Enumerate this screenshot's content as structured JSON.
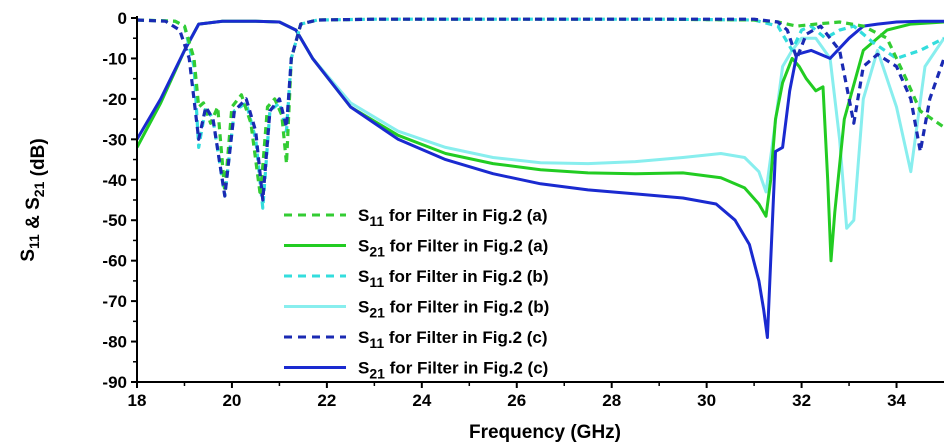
{
  "chart_data": {
    "type": "line",
    "xlabel": "Frequency (GHz)",
    "ylabel": "S11 & S21 (dB)",
    "xlim": [
      18,
      35
    ],
    "ylim": [
      -90,
      0
    ],
    "xticks": [
      18,
      20,
      22,
      24,
      26,
      28,
      30,
      32,
      34
    ],
    "yticks": [
      0,
      -10,
      -20,
      -30,
      -40,
      -50,
      -60,
      -70,
      -80,
      -90
    ],
    "grid": false,
    "legend_position": "bottom-center",
    "legend_suffix": "for Filter in Fig.2",
    "series": [
      {
        "name": "S11 for Filter in Fig.2 (a)",
        "param": "S",
        "param_sub": "11",
        "tag": "(a)",
        "color": "#33cc33",
        "dash": "dashed",
        "x": [
          18,
          18.8,
          19.0,
          19.2,
          19.3,
          19.4,
          19.55,
          19.7,
          19.85,
          20.0,
          20.2,
          20.4,
          20.6,
          20.75,
          20.9,
          21.05,
          21.15,
          21.25,
          21.45,
          21.8,
          23,
          26,
          29,
          31,
          31.5,
          31.9,
          32.3,
          32.8,
          33.3,
          33.8,
          34.2,
          34.5,
          35
        ],
        "y": [
          -0.5,
          -0.8,
          -2,
          -10,
          -22,
          -21,
          -26,
          -22,
          -43,
          -22,
          -19,
          -26,
          -44,
          -22,
          -20,
          -24,
          -36,
          -10,
          -1.5,
          -0.5,
          -0.3,
          -0.3,
          -0.3,
          -0.5,
          -1,
          -2,
          -1.5,
          -1,
          -2,
          -5,
          -15,
          -23,
          -27
        ]
      },
      {
        "name": "S21 for Filter in Fig.2 (a)",
        "param": "S",
        "param_sub": "21",
        "tag": "(a)",
        "color": "#22cc22",
        "dash": "solid",
        "x": [
          18,
          18.5,
          19.0,
          19.3,
          19.8,
          20.5,
          21.0,
          21.35,
          21.7,
          22.5,
          23.5,
          24.5,
          25.5,
          26.5,
          27.5,
          28.5,
          29.5,
          30.3,
          30.8,
          31.1,
          31.25,
          31.35,
          31.45,
          31.6,
          31.8,
          31.95,
          32.1,
          32.3,
          32.45,
          32.55,
          32.62,
          32.7,
          32.9,
          33.3,
          33.8,
          34.3,
          35
        ],
        "y": [
          -32,
          -21,
          -8,
          -1.5,
          -0.8,
          -0.8,
          -1,
          -3,
          -10,
          -22,
          -29,
          -33.5,
          -36,
          -37.5,
          -38.3,
          -38.5,
          -38.3,
          -39.5,
          -42,
          -46,
          -49,
          -40,
          -25,
          -16,
          -10,
          -12,
          -15,
          -18,
          -17,
          -40,
          -60,
          -48,
          -25,
          -8,
          -3,
          -1.5,
          -1
        ]
      },
      {
        "name": "S11 for Filter in Fig.2 (b)",
        "param": "S",
        "param_sub": "11",
        "tag": "(b)",
        "color": "#33dddd",
        "dash": "dashed",
        "x": [
          18,
          18.8,
          19.0,
          19.2,
          19.3,
          19.45,
          19.6,
          19.85,
          20.05,
          20.3,
          20.5,
          20.65,
          20.8,
          21.0,
          21.15,
          21.25,
          21.45,
          21.8,
          23,
          26,
          29,
          31,
          31.5,
          31.8,
          32.0,
          32.2,
          32.5,
          32.8,
          33.1,
          33.5,
          34.0,
          34.5,
          35
        ],
        "y": [
          -0.5,
          -0.8,
          -2,
          -12,
          -32,
          -22,
          -25,
          -44,
          -23,
          -21,
          -30,
          -47,
          -23,
          -21,
          -28,
          -10,
          -1.5,
          -0.5,
          -0.3,
          -0.3,
          -0.3,
          -0.5,
          -2,
          -8,
          -3,
          -2,
          -5,
          -3,
          -2,
          -6,
          -10,
          -8,
          -5
        ]
      },
      {
        "name": "S21 for Filter in Fig.2 (b)",
        "param": "S",
        "param_sub": "21",
        "tag": "(b)",
        "color": "#88eeee",
        "dash": "solid",
        "x": [
          18,
          18.5,
          19.0,
          19.3,
          19.8,
          20.5,
          21.0,
          21.35,
          21.7,
          22.5,
          23.5,
          24.5,
          25.5,
          26.5,
          27.5,
          28.5,
          29.5,
          30.3,
          30.8,
          31.1,
          31.25,
          31.4,
          31.6,
          31.8,
          32.0,
          32.3,
          32.6,
          32.8,
          32.95,
          33.1,
          33.3,
          33.6,
          34.0,
          34.3,
          34.6,
          35
        ],
        "y": [
          -32,
          -21,
          -8,
          -1.5,
          -0.8,
          -0.8,
          -1,
          -3,
          -10,
          -21,
          -28,
          -32,
          -34.5,
          -35.8,
          -36,
          -35.5,
          -34.5,
          -33.5,
          -34.5,
          -38,
          -43,
          -30,
          -12,
          -8,
          -5,
          -5,
          -10,
          -30,
          -52,
          -50,
          -20,
          -8,
          -22,
          -38,
          -12,
          -5
        ]
      },
      {
        "name": "S11 for Filter in Fig.2 (c)",
        "param": "S",
        "param_sub": "11",
        "tag": "(c)",
        "color": "#1a2ab3",
        "dash": "dashed",
        "x": [
          18,
          18.6,
          18.9,
          19.1,
          19.3,
          19.45,
          19.6,
          19.85,
          20.05,
          20.3,
          20.5,
          20.65,
          20.8,
          21.0,
          21.15,
          21.25,
          21.45,
          21.8,
          23,
          26,
          29,
          31,
          31.5,
          31.7,
          31.9,
          32.1,
          32.4,
          32.8,
          33.0,
          33.1,
          33.3,
          33.6,
          34.0,
          34.3,
          34.5,
          34.7,
          35
        ],
        "y": [
          -0.5,
          -0.8,
          -3,
          -10,
          -30,
          -22,
          -25,
          -44,
          -23,
          -20,
          -28,
          -45,
          -23,
          -20,
          -27,
          -10,
          -1.5,
          -0.5,
          -0.3,
          -0.3,
          -0.3,
          -0.3,
          -1,
          -3,
          -10,
          -4,
          -2,
          -8,
          -20,
          -26,
          -12,
          -9,
          -12,
          -20,
          -33,
          -20,
          -10
        ]
      },
      {
        "name": "S21 for Filter in Fig.2 (c)",
        "param": "S",
        "param_sub": "21",
        "tag": "(c)",
        "color": "#1a2ad0",
        "dash": "solid",
        "x": [
          18,
          18.5,
          19.0,
          19.3,
          19.8,
          20.5,
          21.0,
          21.35,
          21.7,
          22.5,
          23.5,
          24.5,
          25.5,
          26.5,
          27.5,
          28.5,
          29.5,
          30.2,
          30.6,
          30.9,
          31.1,
          31.2,
          31.28,
          31.35,
          31.45,
          31.6,
          31.75,
          31.9,
          32.2,
          32.6,
          33.0,
          33.3,
          33.6,
          34.0,
          34.5,
          35
        ],
        "y": [
          -30,
          -20,
          -8,
          -1.5,
          -0.8,
          -0.8,
          -1,
          -3,
          -10,
          -22,
          -30,
          -35,
          -38.5,
          -41,
          -42.5,
          -43.5,
          -44.5,
          -46,
          -50,
          -56,
          -65,
          -72,
          -79,
          -60,
          -33,
          -32,
          -18,
          -9,
          -8,
          -10,
          -5,
          -2,
          -1.5,
          -1,
          -0.8,
          -0.8
        ]
      }
    ]
  }
}
